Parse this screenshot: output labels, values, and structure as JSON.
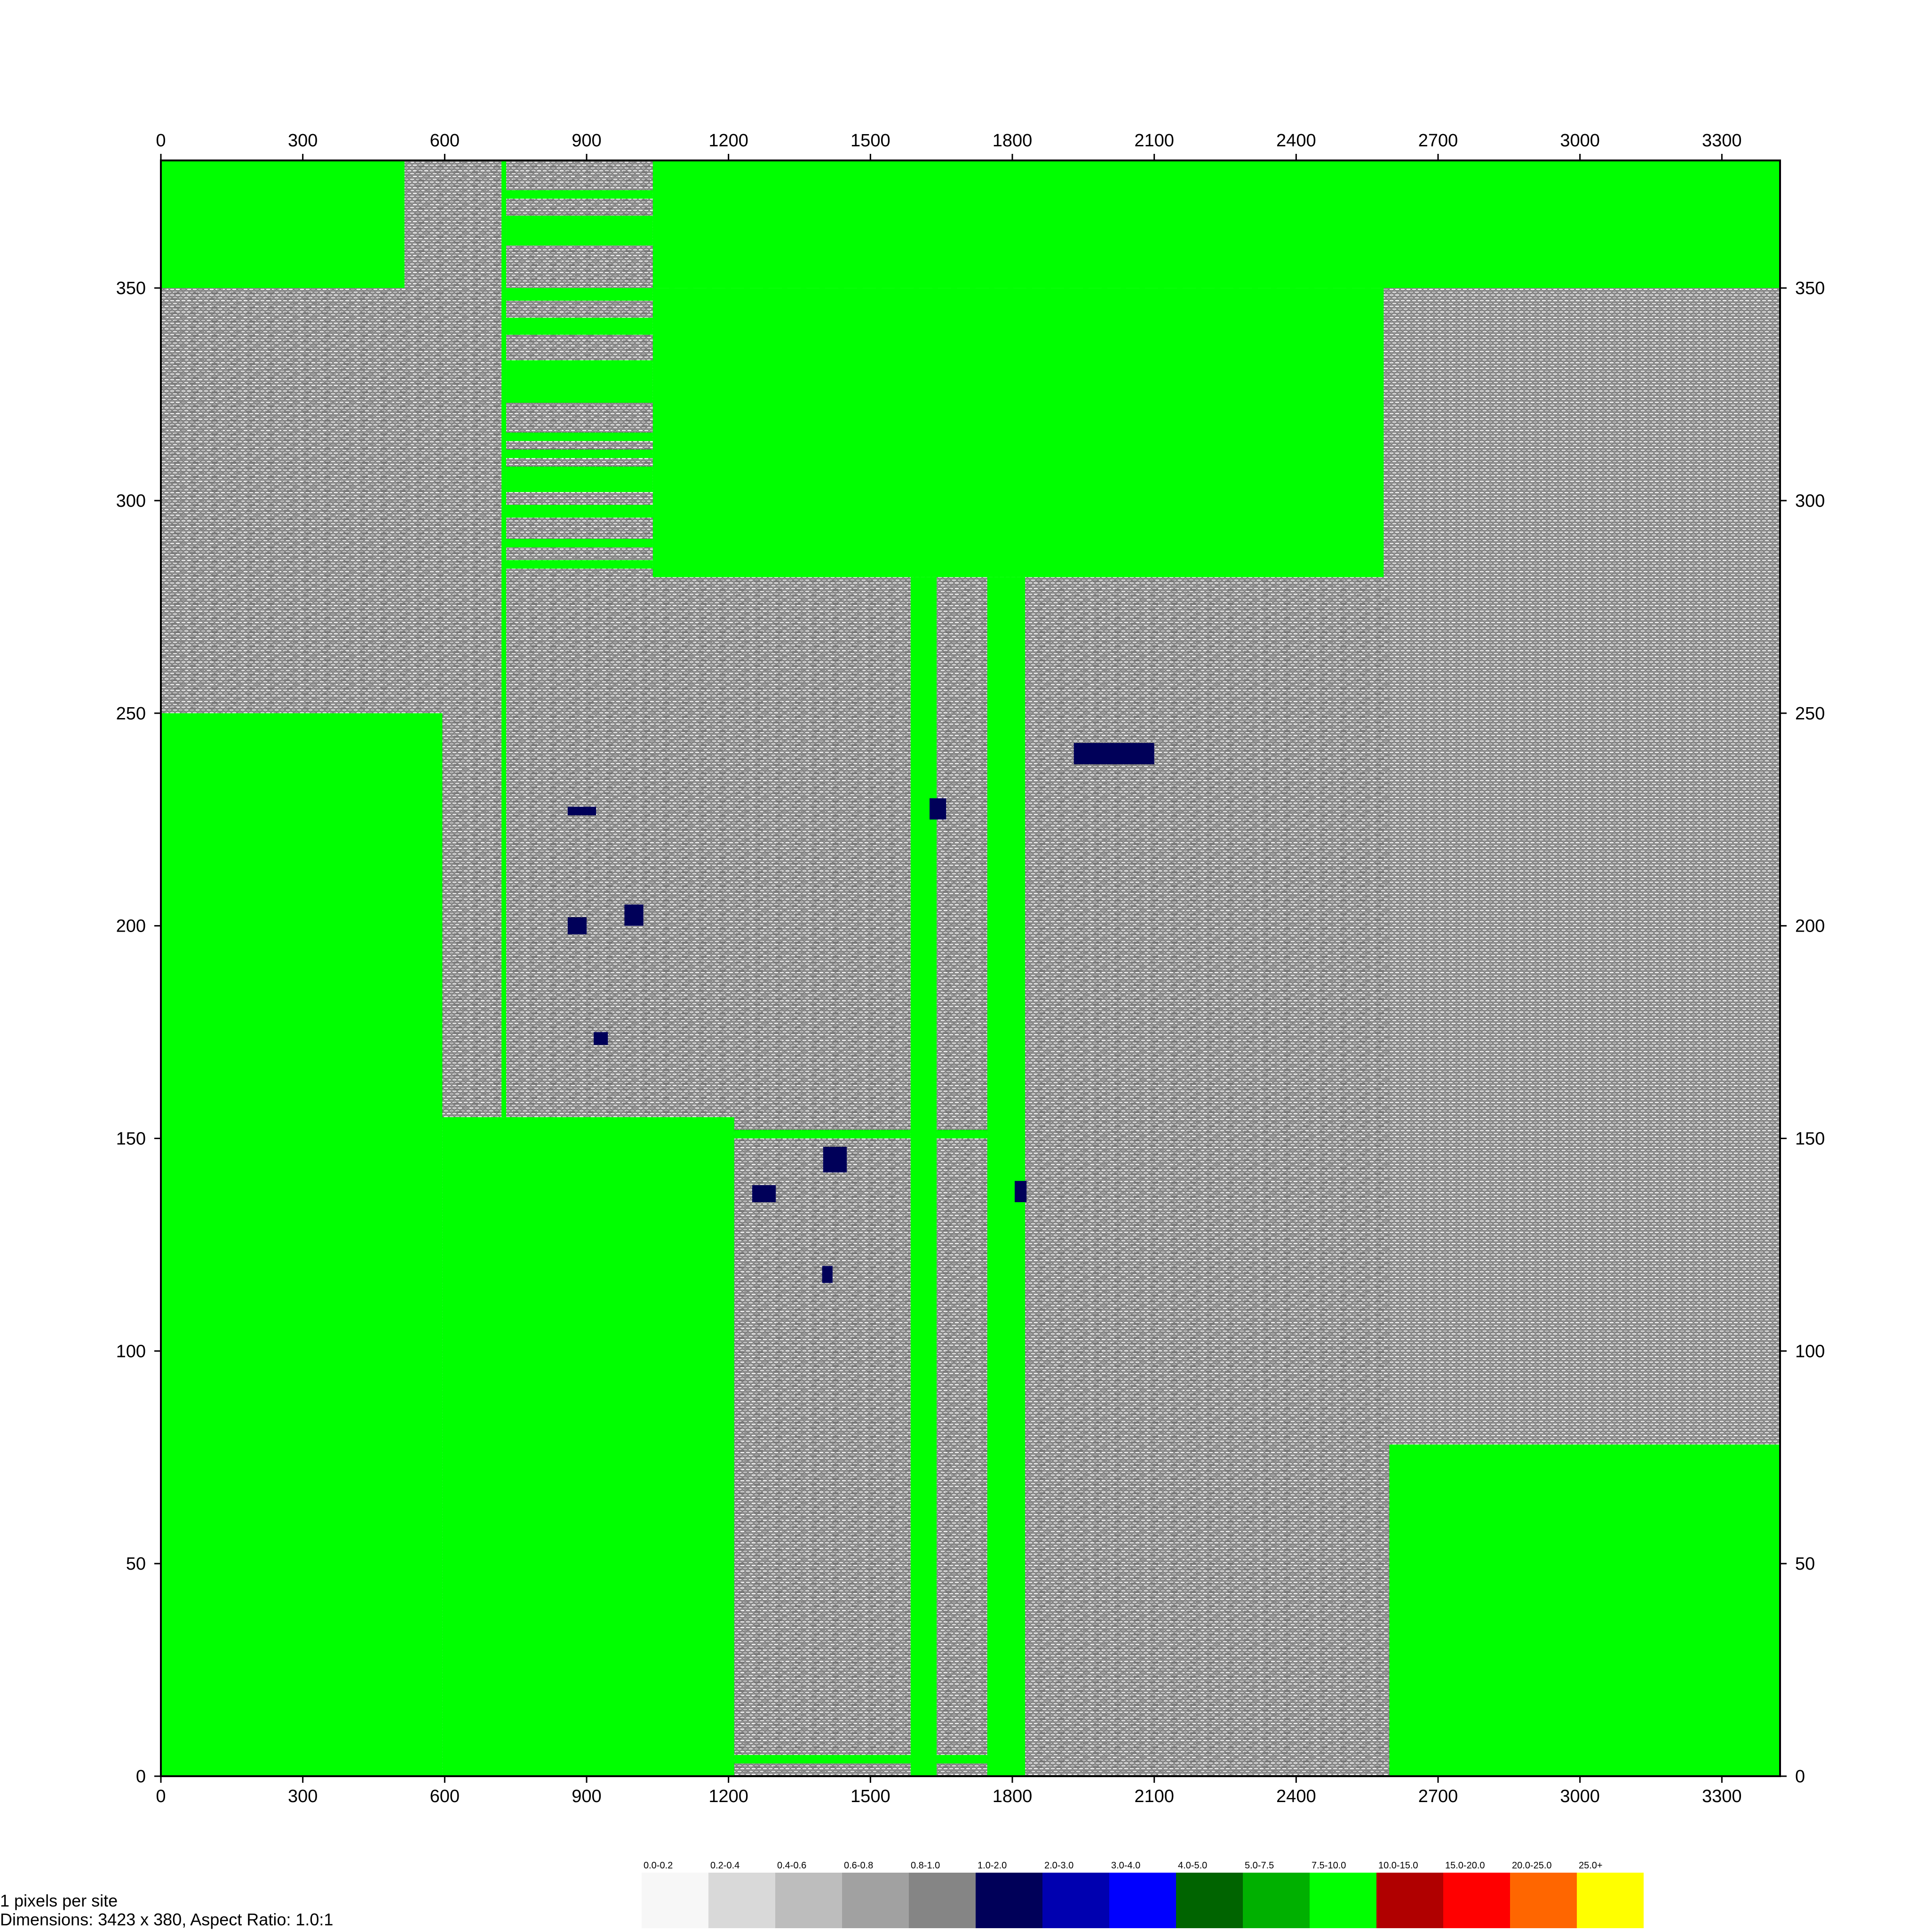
{
  "chart_data": {
    "type": "heatmap",
    "title": "",
    "xlabel": "",
    "ylabel": "",
    "xlim": [
      0,
      3423
    ],
    "ylim": [
      0,
      380
    ],
    "x_ticks": [
      0,
      300,
      600,
      900,
      1200,
      1500,
      1800,
      2100,
      2400,
      2700,
      3000,
      3300
    ],
    "y_ticks": [
      0,
      50,
      100,
      150,
      200,
      250,
      300,
      350
    ],
    "background_value_class": "0.0-2.0 (grey stippled wafer map)",
    "green_regions": [
      {
        "x": [
          0,
          515
        ],
        "y": [
          350,
          380
        ]
      },
      {
        "x": [
          1040,
          3423
        ],
        "y": [
          350,
          380
        ]
      },
      {
        "x": [
          1040,
          2585
        ],
        "y": [
          282,
          350
        ]
      },
      {
        "x": [
          0,
          595
        ],
        "y": [
          0,
          250
        ]
      },
      {
        "x": [
          595,
          1212
        ],
        "y": [
          0,
          155
        ]
      },
      {
        "x": [
          720,
          730
        ],
        "y": [
          155,
          380
        ]
      },
      {
        "x": [
          1212,
          1585
        ],
        "y": [
          150,
          152
        ]
      },
      {
        "x": [
          1212,
          1585
        ],
        "y": [
          3,
          5
        ]
      },
      {
        "x": [
          1585,
          1640
        ],
        "y": [
          0,
          282
        ]
      },
      {
        "x": [
          1640,
          1747
        ],
        "y": [
          150,
          152
        ]
      },
      {
        "x": [
          1640,
          1747
        ],
        "y": [
          3,
          5
        ]
      },
      {
        "x": [
          1747,
          1827
        ],
        "y": [
          0,
          282
        ]
      },
      {
        "x": [
          2597,
          3423
        ],
        "y": [
          0,
          78
        ]
      },
      {
        "x": [
          730,
          1040
        ],
        "y": [
          371,
          373
        ]
      },
      {
        "x": [
          730,
          1040
        ],
        "y": [
          360,
          367
        ]
      },
      {
        "x": [
          730,
          1040
        ],
        "y": [
          347,
          350
        ]
      },
      {
        "x": [
          730,
          1040
        ],
        "y": [
          339,
          343
        ]
      },
      {
        "x": [
          730,
          1040
        ],
        "y": [
          323,
          333
        ]
      },
      {
        "x": [
          730,
          1040
        ],
        "y": [
          314,
          316
        ]
      },
      {
        "x": [
          730,
          1040
        ],
        "y": [
          310,
          312
        ]
      },
      {
        "x": [
          730,
          1040
        ],
        "y": [
          302,
          308
        ]
      },
      {
        "x": [
          730,
          1040
        ],
        "y": [
          296,
          299
        ]
      },
      {
        "x": [
          730,
          1040
        ],
        "y": [
          289,
          291
        ]
      },
      {
        "x": [
          730,
          1040
        ],
        "y": [
          284,
          286
        ]
      }
    ],
    "dark_spots": [
      {
        "x": [
          1930,
          2100
        ],
        "y": [
          243,
          238
        ]
      },
      {
        "x": [
          1625,
          1660
        ],
        "y": [
          230,
          225
        ]
      },
      {
        "x": [
          860,
          920
        ],
        "y": [
          228,
          226
        ]
      },
      {
        "x": [
          860,
          900
        ],
        "y": [
          202,
          198
        ]
      },
      {
        "x": [
          980,
          1020
        ],
        "y": [
          205,
          200
        ]
      },
      {
        "x": [
          1400,
          1450
        ],
        "y": [
          148,
          142
        ]
      },
      {
        "x": [
          1250,
          1300
        ],
        "y": [
          139,
          135
        ]
      },
      {
        "x": [
          1398,
          1420
        ],
        "y": [
          120,
          116
        ]
      },
      {
        "x": [
          915,
          945
        ],
        "y": [
          175,
          172
        ]
      },
      {
        "x": [
          1805,
          1830
        ],
        "y": [
          140,
          135
        ]
      }
    ],
    "legend": [
      {
        "label": "0.0-0.2",
        "color": "#f7f7f7"
      },
      {
        "label": "0.2-0.4",
        "color": "#d9d9d9"
      },
      {
        "label": "0.4-0.6",
        "color": "#bdbdbd"
      },
      {
        "label": "0.6-0.8",
        "color": "#a1a1a1"
      },
      {
        "label": "0.8-1.0",
        "color": "#858585"
      },
      {
        "label": "1.0-2.0",
        "color": "#000059"
      },
      {
        "label": "2.0-3.0",
        "color": "#0000b0"
      },
      {
        "label": "3.0-4.0",
        "color": "#0000ff"
      },
      {
        "label": "4.0-5.0",
        "color": "#006400"
      },
      {
        "label": "5.0-7.5",
        "color": "#00b000"
      },
      {
        "label": "7.5-10.0",
        "color": "#00ff00"
      },
      {
        "label": "10.0-15.0",
        "color": "#b00000"
      },
      {
        "label": "15.0-20.0",
        "color": "#ff0000"
      },
      {
        "label": "20.0-25.0",
        "color": "#ff6600"
      },
      {
        "label": "25.0+",
        "color": "#ffff00"
      }
    ]
  },
  "footer": {
    "line1": "1  pixels  per  site",
    "line2": "Dimensions:  3423  x  380,  Aspect  Ratio:  1.0:1"
  }
}
